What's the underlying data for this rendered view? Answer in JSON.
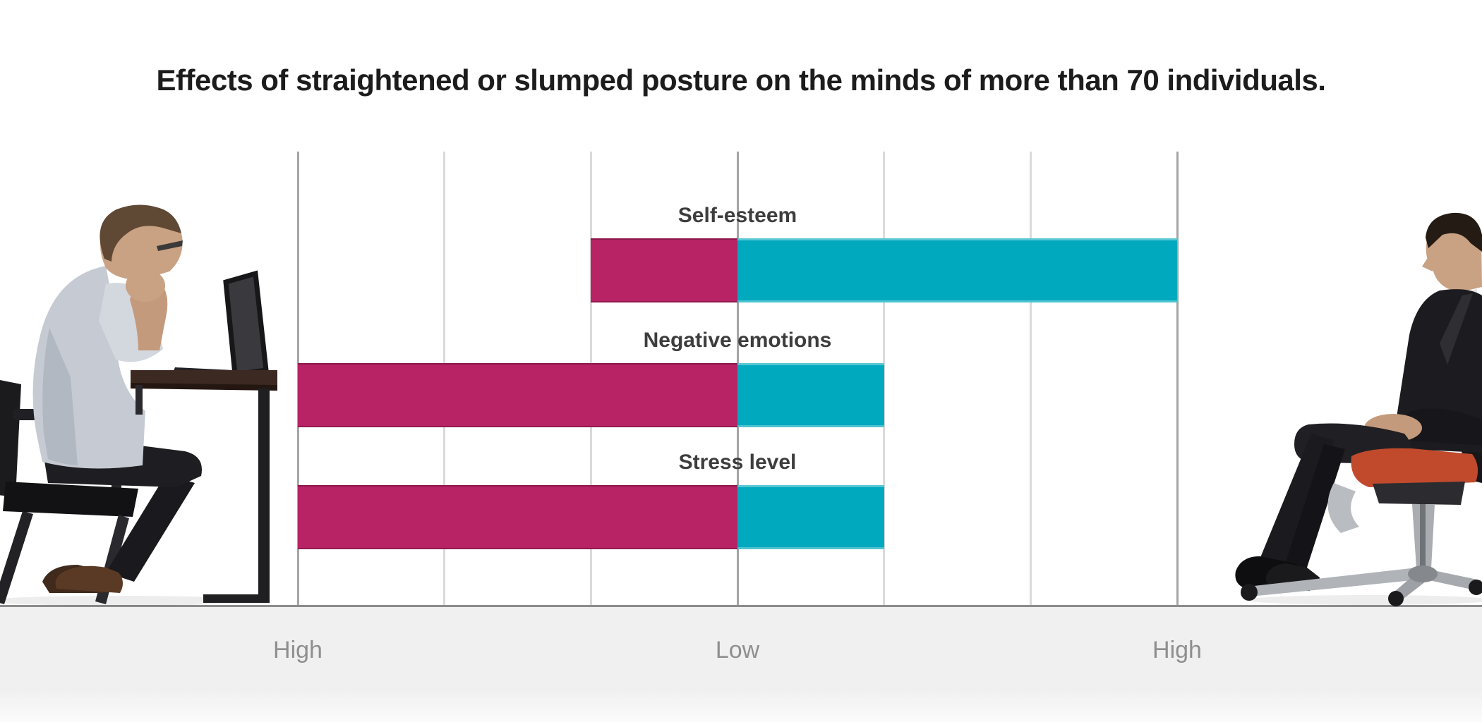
{
  "title": "Effects of straightened or slumped posture on the minds of more than 70 individuals.",
  "colors": {
    "slumped_bar": "#b72365",
    "straightened_bar": "#00a9bd",
    "gridline_minor": "#dadada",
    "gridline_major": "#a5a5a5",
    "floor_line": "#8c8c8c",
    "footer_background": "#f0f0f1",
    "category_label_text": "#3d3d3d",
    "axis_label_text": "#8f8f8f",
    "title_text": "#1c1c1c",
    "chair_seat_red": "#c14a2c"
  },
  "chart_data": {
    "type": "bar",
    "orientation": "horizontal-diverging",
    "title": "Effects of straightened or slumped posture on the minds of more than 70 individuals.",
    "categories": [
      "Self-esteem",
      "Negative emotions",
      "Stress level"
    ],
    "series": [
      {
        "name": "Slumped posture",
        "direction": "left-of-center",
        "color": "#b72365",
        "values": [
          1,
          3,
          3
        ]
      },
      {
        "name": "Straightened posture",
        "direction": "right-of-center",
        "color": "#00a9bd",
        "values": [
          3,
          1,
          1
        ]
      }
    ],
    "value_scale": "qualitative; units are gridline spacings measured outward from the central 'Low' line, 3 = outer 'High' line",
    "x_axis": {
      "tick_labels": [
        "High",
        "Low",
        "High"
      ],
      "tick_positions": [
        -3,
        0,
        3
      ],
      "range": [
        -3,
        3
      ],
      "gridline_count": 7,
      "grid": true
    },
    "legend": "none (series identified by flanking photos: slumped man at left, upright man at right)"
  },
  "footer": {
    "axis_labels": [
      "High",
      "Low",
      "High"
    ]
  },
  "illustrations": {
    "left": "man in slumped posture working on a laptop at a dark wooden desk, seated on a black chair",
    "right": "man in dark suit sitting upright in an office swivel chair with a red seat cushion"
  }
}
